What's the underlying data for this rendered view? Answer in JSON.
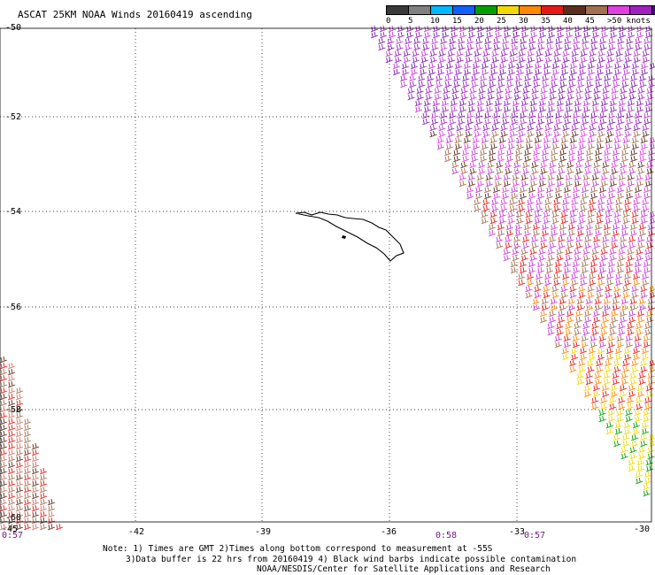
{
  "title": "ASCAT 25KM NOAA Winds 20160419 ascending",
  "legend": {
    "colors": [
      "#3a3a3a",
      "#808080",
      "#00b8ff",
      "#1060ff",
      "#00a000",
      "#f2d800",
      "#ff8800",
      "#e81818",
      "#5a2e1e",
      "#a07050",
      "#e040e0",
      "#a020c0",
      "#500080"
    ],
    "labels": [
      "0",
      "5",
      "10",
      "15",
      "20",
      "25",
      "30",
      "35",
      "40",
      "45",
      ">50 knots"
    ]
  },
  "map": {
    "lon_range": [
      -45,
      -30
    ],
    "lat_range": [
      -60,
      -50
    ],
    "lat_labels": [
      "-50",
      "-52",
      "-54",
      "-56",
      "-58",
      "-60"
    ],
    "lon_labels": [
      "-45",
      "-42",
      "-39",
      "-36",
      "-33",
      "-30"
    ]
  },
  "times": [
    "0:57",
    "0:58",
    "0:57"
  ],
  "notes": [
    "Note: 1) Times are GMT 2)Times along bottom correspond to measurement at -55S",
    "3)Data buffer is 22 hrs from 20160419 4) Black wind barbs indicate possible contamination",
    "NOAA/NESDIS/Center for Satellite Applications and Research"
  ]
}
